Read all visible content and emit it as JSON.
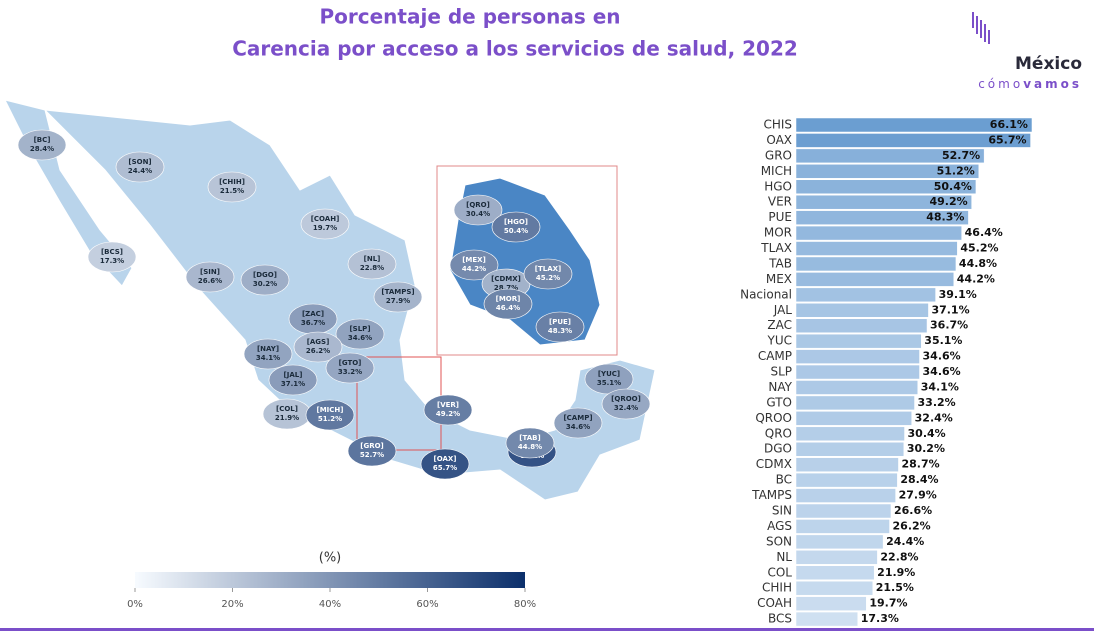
{
  "header": {
    "title_line1": "Porcentaje de personas en",
    "title_line2": "Carencia por acceso a los servicios de salud, 2022"
  },
  "logo": {
    "top": "México",
    "bottom_light": "cómo",
    "bottom_bold": "vamos"
  },
  "chart_data": [
    {
      "type": "choropleth",
      "regions": [
        "[BC]",
        "[SON]",
        "[CHIH]",
        "[COAH]",
        "[BCS]",
        "[NL]",
        "[SIN]",
        "[DGO]",
        "[TAMPS]",
        "[ZAC]",
        "[SLP]",
        "[NAY]",
        "[AGS]",
        "[GTO]",
        "[JAL]",
        "[COL]",
        "[MICH]",
        "[VER]",
        "[GRO]",
        "[OAX]",
        "[CHIS]",
        "[TAB]",
        "[CAMP]",
        "[YUC]",
        "[QROO]"
      ],
      "values": [
        28.4,
        24.4,
        21.5,
        19.7,
        17.3,
        22.8,
        26.6,
        30.2,
        27.9,
        36.7,
        34.6,
        34.1,
        26.2,
        33.2,
        37.1,
        21.9,
        51.2,
        49.2,
        52.7,
        65.7,
        66.1,
        44.8,
        34.6,
        35.1,
        32.4
      ],
      "value_labels": [
        "28.4%",
        "24.4%",
        "21.5%",
        "19.7%",
        "17.3%",
        "22.8%",
        "26.6%",
        "30.2%",
        "27.9%",
        "36.7%",
        "34.6%",
        "34.1%",
        "26.2%",
        "33.2%",
        "37.1%",
        "21.9%",
        "51.2%",
        "49.2%",
        "52.7%",
        "65.7%",
        "66.1%",
        "44.8%",
        "34.6%",
        "35.1%",
        "32.4%"
      ],
      "inset_regions": [
        "[QRO]",
        "[HGO]",
        "[MEX]",
        "[CDMX]",
        "[TLAX]",
        "[MOR]",
        "[PUE]"
      ],
      "inset_values": [
        30.4,
        50.4,
        44.2,
        28.7,
        45.2,
        46.4,
        48.3
      ],
      "inset_value_labels": [
        "30.4%",
        "50.4%",
        "44.2%",
        "28.7%",
        "45.2%",
        "46.4%",
        "48.3%"
      ],
      "legend_title": "(%)",
      "clim": [
        0,
        80
      ],
      "cticks": [
        {
          "value": 0,
          "label": "0%"
        },
        {
          "value": 20,
          "label": "20%"
        },
        {
          "value": 40,
          "label": "40%"
        },
        {
          "value": 60,
          "label": "60%"
        },
        {
          "value": 80,
          "label": "80%"
        }
      ],
      "colorscale": [
        "#f7fbff",
        "#0b2f6b"
      ]
    },
    {
      "type": "hbar",
      "categories": [
        "CHIS",
        "OAX",
        "GRO",
        "MICH",
        "HGO",
        "VER",
        "PUE",
        "MOR",
        "TLAX",
        "TAB",
        "MEX",
        "Nacional",
        "JAL",
        "ZAC",
        "YUC",
        "CAMP",
        "SLP",
        "NAY",
        "GTO",
        "QROO",
        "QRO",
        "DGO",
        "CDMX",
        "BC",
        "TAMPS",
        "SIN",
        "AGS",
        "SON",
        "NL",
        "COL",
        "CHIH",
        "COAH",
        "BCS"
      ],
      "values": [
        66.1,
        65.7,
        52.7,
        51.2,
        50.4,
        49.2,
        48.3,
        46.4,
        45.2,
        44.8,
        44.2,
        39.1,
        37.1,
        36.7,
        35.1,
        34.6,
        34.6,
        34.1,
        33.2,
        32.4,
        30.4,
        30.2,
        28.7,
        28.4,
        27.9,
        26.6,
        26.2,
        24.4,
        22.8,
        21.9,
        21.5,
        19.7,
        17.3
      ],
      "value_labels": [
        "66.1%",
        "65.7%",
        "52.7%",
        "51.2%",
        "50.4%",
        "49.2%",
        "48.3%",
        "46.4%",
        "45.2%",
        "44.8%",
        "44.2%",
        "39.1%",
        "37.1%",
        "36.7%",
        "35.1%",
        "34.6%",
        "34.6%",
        "34.1%",
        "33.2%",
        "32.4%",
        "30.4%",
        "30.2%",
        "28.7%",
        "28.4%",
        "27.9%",
        "26.6%",
        "26.2%",
        "24.4%",
        "22.8%",
        "21.9%",
        "21.5%",
        "19.7%",
        "17.3%"
      ],
      "colorscale": [
        "#f2f7fc",
        "#4f8bc8"
      ]
    }
  ]
}
